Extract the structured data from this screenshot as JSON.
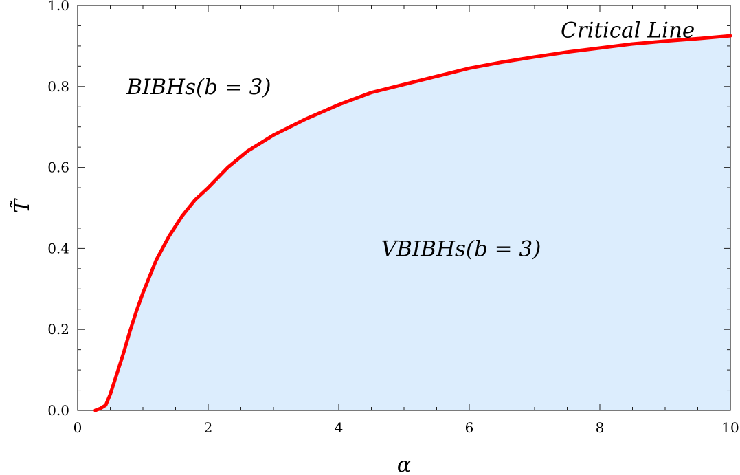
{
  "chart_data": {
    "type": "area",
    "xlabel": "α",
    "ylabel": "T̃",
    "xlim": [
      0,
      10
    ],
    "ylim": [
      0,
      1
    ],
    "x_ticks": [
      0,
      2,
      4,
      6,
      8,
      10
    ],
    "y_ticks": [
      0.0,
      0.2,
      0.4,
      0.6,
      0.8,
      1.0
    ],
    "x_tick_labels": [
      "0",
      "2",
      "4",
      "6",
      "8",
      "10"
    ],
    "y_tick_labels": [
      "0.0",
      "0.2",
      "0.4",
      "0.6",
      "0.8",
      "1.0"
    ],
    "grid": false,
    "colors": {
      "line": "#ff0000",
      "fill": "#dcedfd"
    },
    "series": [
      {
        "x": [
          0.27,
          0.35,
          0.43,
          0.5,
          0.6,
          0.7,
          0.8,
          0.9,
          1.0,
          1.2,
          1.4,
          1.6,
          1.8,
          2.0,
          2.3,
          2.6,
          3.0,
          3.5,
          4.0,
          4.5,
          5.0,
          5.5,
          6.0,
          6.5,
          7.0,
          7.5,
          8.0,
          8.5,
          9.0,
          9.5,
          10.0
        ],
        "y": [
          0.0,
          0.005,
          0.013,
          0.04,
          0.09,
          0.14,
          0.195,
          0.245,
          0.29,
          0.37,
          0.43,
          0.48,
          0.52,
          0.55,
          0.6,
          0.64,
          0.68,
          0.72,
          0.755,
          0.785,
          0.805,
          0.825,
          0.845,
          0.86,
          0.873,
          0.885,
          0.895,
          0.905,
          0.912,
          0.918,
          0.925
        ]
      }
    ],
    "annotations": [
      {
        "text": "Critical Line",
        "x": 7.4,
        "y": 0.94
      },
      {
        "text": "BIBHs(b = 3)",
        "x": 0.75,
        "y": 0.8
      },
      {
        "text": "VBIBHs(b = 3)",
        "x": 4.65,
        "y": 0.4
      }
    ]
  }
}
